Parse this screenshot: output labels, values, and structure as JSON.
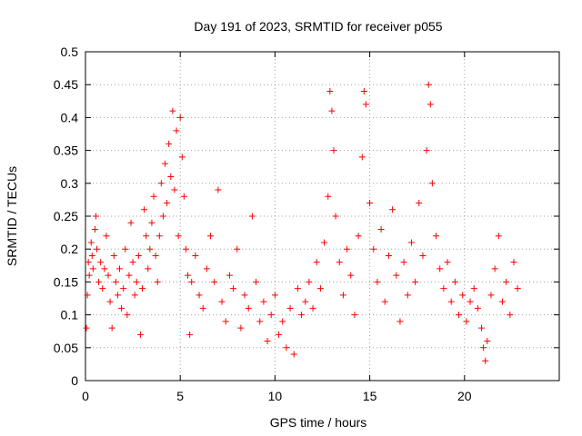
{
  "chart_data": {
    "type": "scatter",
    "title": "Day 191 of 2023, SRMTID for receiver p055",
    "xlabel": "GPS time / hours",
    "ylabel": "SRMTID / TECUs",
    "xlim": [
      0,
      25
    ],
    "ylim": [
      0,
      0.5
    ],
    "xticks": [
      0,
      5,
      10,
      15,
      20
    ],
    "xtick_labels": [
      "0",
      "5",
      "10",
      "15",
      "20"
    ],
    "yticks": [
      0,
      0.05,
      0.1,
      0.15,
      0.2,
      0.25,
      0.3,
      0.35,
      0.4,
      0.45,
      0.5
    ],
    "ytick_labels": [
      "0",
      "0.05",
      "0.1",
      "0.15",
      "0.2",
      "0.25",
      "0.3",
      "0.35",
      "0.4",
      "0.45",
      "0.5"
    ],
    "grid": true,
    "marker": "+",
    "marker_color": "#ff0000",
    "series": [
      {
        "name": "SRMTID",
        "points": [
          [
            0.05,
            0.08
          ],
          [
            0.1,
            0.13
          ],
          [
            0.15,
            0.18
          ],
          [
            0.2,
            0.16
          ],
          [
            0.3,
            0.21
          ],
          [
            0.35,
            0.19
          ],
          [
            0.4,
            0.17
          ],
          [
            0.5,
            0.23
          ],
          [
            0.55,
            0.25
          ],
          [
            0.6,
            0.2
          ],
          [
            0.7,
            0.15
          ],
          [
            0.8,
            0.18
          ],
          [
            0.9,
            0.14
          ],
          [
            1.0,
            0.17
          ],
          [
            1.1,
            0.22
          ],
          [
            1.2,
            0.16
          ],
          [
            1.3,
            0.12
          ],
          [
            1.4,
            0.08
          ],
          [
            1.5,
            0.19
          ],
          [
            1.6,
            0.15
          ],
          [
            1.7,
            0.13
          ],
          [
            1.8,
            0.17
          ],
          [
            1.9,
            0.11
          ],
          [
            2.0,
            0.14
          ],
          [
            2.1,
            0.2
          ],
          [
            2.2,
            0.1
          ],
          [
            2.3,
            0.16
          ],
          [
            2.4,
            0.24
          ],
          [
            2.5,
            0.18
          ],
          [
            2.6,
            0.13
          ],
          [
            2.7,
            0.15
          ],
          [
            2.8,
            0.19
          ],
          [
            2.9,
            0.07
          ],
          [
            3.0,
            0.14
          ],
          [
            3.1,
            0.26
          ],
          [
            3.2,
            0.22
          ],
          [
            3.3,
            0.17
          ],
          [
            3.4,
            0.2
          ],
          [
            3.5,
            0.24
          ],
          [
            3.6,
            0.28
          ],
          [
            3.7,
            0.19
          ],
          [
            3.8,
            0.15
          ],
          [
            3.9,
            0.22
          ],
          [
            4.0,
            0.3
          ],
          [
            4.1,
            0.25
          ],
          [
            4.2,
            0.33
          ],
          [
            4.3,
            0.27
          ],
          [
            4.4,
            0.36
          ],
          [
            4.5,
            0.31
          ],
          [
            4.6,
            0.41
          ],
          [
            4.7,
            0.29
          ],
          [
            4.8,
            0.38
          ],
          [
            4.9,
            0.22
          ],
          [
            5.0,
            0.4
          ],
          [
            5.1,
            0.34
          ],
          [
            5.2,
            0.28
          ],
          [
            5.3,
            0.2
          ],
          [
            5.4,
            0.16
          ],
          [
            5.5,
            0.07
          ],
          [
            5.6,
            0.15
          ],
          [
            5.8,
            0.19
          ],
          [
            6.0,
            0.13
          ],
          [
            6.2,
            0.11
          ],
          [
            6.4,
            0.17
          ],
          [
            6.6,
            0.22
          ],
          [
            6.8,
            0.15
          ],
          [
            7.0,
            0.29
          ],
          [
            7.2,
            0.12
          ],
          [
            7.4,
            0.09
          ],
          [
            7.6,
            0.16
          ],
          [
            7.8,
            0.14
          ],
          [
            8.0,
            0.2
          ],
          [
            8.2,
            0.08
          ],
          [
            8.4,
            0.13
          ],
          [
            8.6,
            0.11
          ],
          [
            8.8,
            0.25
          ],
          [
            9.0,
            0.15
          ],
          [
            9.2,
            0.09
          ],
          [
            9.4,
            0.12
          ],
          [
            9.6,
            0.06
          ],
          [
            9.8,
            0.1
          ],
          [
            10.0,
            0.13
          ],
          [
            10.2,
            0.07
          ],
          [
            10.4,
            0.09
          ],
          [
            10.6,
            0.05
          ],
          [
            10.8,
            0.11
          ],
          [
            11.0,
            0.04
          ],
          [
            11.2,
            0.14
          ],
          [
            11.4,
            0.1
          ],
          [
            11.6,
            0.12
          ],
          [
            11.8,
            0.15
          ],
          [
            12.0,
            0.11
          ],
          [
            12.2,
            0.18
          ],
          [
            12.4,
            0.14
          ],
          [
            12.6,
            0.21
          ],
          [
            12.8,
            0.28
          ],
          [
            12.9,
            0.44
          ],
          [
            13.0,
            0.41
          ],
          [
            13.1,
            0.35
          ],
          [
            13.2,
            0.25
          ],
          [
            13.4,
            0.18
          ],
          [
            13.6,
            0.13
          ],
          [
            13.8,
            0.2
          ],
          [
            14.0,
            0.16
          ],
          [
            14.2,
            0.1
          ],
          [
            14.4,
            0.22
          ],
          [
            14.6,
            0.34
          ],
          [
            14.7,
            0.44
          ],
          [
            14.8,
            0.42
          ],
          [
            15.0,
            0.27
          ],
          [
            15.2,
            0.2
          ],
          [
            15.4,
            0.15
          ],
          [
            15.6,
            0.23
          ],
          [
            15.8,
            0.12
          ],
          [
            16.0,
            0.19
          ],
          [
            16.2,
            0.26
          ],
          [
            16.4,
            0.16
          ],
          [
            16.6,
            0.09
          ],
          [
            16.8,
            0.18
          ],
          [
            17.0,
            0.13
          ],
          [
            17.2,
            0.21
          ],
          [
            17.4,
            0.15
          ],
          [
            17.6,
            0.27
          ],
          [
            17.8,
            0.19
          ],
          [
            18.0,
            0.35
          ],
          [
            18.1,
            0.45
          ],
          [
            18.2,
            0.42
          ],
          [
            18.3,
            0.3
          ],
          [
            18.5,
            0.22
          ],
          [
            18.7,
            0.17
          ],
          [
            18.9,
            0.14
          ],
          [
            19.1,
            0.18
          ],
          [
            19.3,
            0.12
          ],
          [
            19.5,
            0.15
          ],
          [
            19.7,
            0.1
          ],
          [
            19.9,
            0.13
          ],
          [
            20.1,
            0.09
          ],
          [
            20.3,
            0.12
          ],
          [
            20.5,
            0.14
          ],
          [
            20.7,
            0.11
          ],
          [
            20.9,
            0.08
          ],
          [
            21.0,
            0.05
          ],
          [
            21.1,
            0.03
          ],
          [
            21.2,
            0.06
          ],
          [
            21.4,
            0.13
          ],
          [
            21.6,
            0.17
          ],
          [
            21.8,
            0.22
          ],
          [
            22.0,
            0.12
          ],
          [
            22.2,
            0.15
          ],
          [
            22.4,
            0.1
          ],
          [
            22.6,
            0.18
          ],
          [
            22.8,
            0.14
          ]
        ]
      }
    ]
  }
}
